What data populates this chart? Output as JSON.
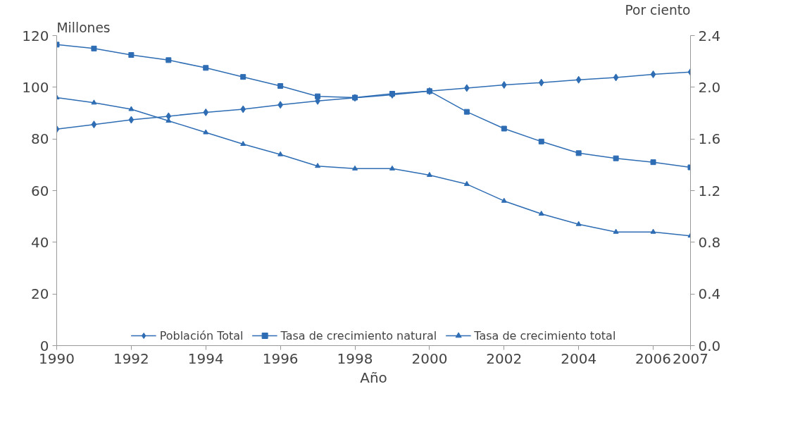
{
  "chart_data": {
    "type": "line",
    "xlabel": "Año",
    "ylabel": "Millones",
    "y2label": "Por ciento",
    "x": [
      1990,
      1991,
      1992,
      1993,
      1994,
      1995,
      1996,
      1997,
      1998,
      1999,
      2000,
      2001,
      2002,
      2003,
      2004,
      2005,
      2006,
      2007
    ],
    "xlim": [
      1990,
      2007
    ],
    "xticks": [
      1990,
      1992,
      1994,
      1996,
      1998,
      2000,
      2002,
      2004,
      2006,
      2007
    ],
    "ylim": [
      0,
      120
    ],
    "yticks": [
      0,
      20,
      40,
      60,
      80,
      100,
      120
    ],
    "y2lim": [
      0,
      2.4
    ],
    "y2ticks": [
      {
        "value": 0,
        "label": "0.0"
      },
      0.4,
      0.8,
      1.2,
      1.6,
      {
        "value": 2,
        "label": "2.0"
      },
      2.4
    ],
    "grid": false,
    "legend": "bottom",
    "series": [
      {
        "name": "Población Total",
        "color": "#2e6db4",
        "marker": "diamond",
        "values": [
          83.8,
          85.6,
          87.4,
          88.8,
          90.3,
          91.5,
          93.2,
          94.7,
          95.9,
          97.1,
          98.5,
          99.7,
          100.9,
          101.8,
          102.9,
          103.8,
          105,
          105.9
        ]
      },
      {
        "name": "Tasa de crecimiento natural",
        "color": "#2e6db4",
        "marker": "square",
        "axis": "y2",
        "values": [
          2.33,
          2.3,
          2.25,
          2.21,
          2.15,
          2.08,
          2.01,
          1.93,
          1.92,
          1.95,
          1.97,
          1.81,
          1.68,
          1.58,
          1.49,
          1.45,
          1.42,
          1.38
        ]
      },
      {
        "name": "Tasa de crecimiento total",
        "color": "#2e6db4",
        "marker": "triangle",
        "axis": "y2",
        "values": [
          1.92,
          1.88,
          1.83,
          1.74,
          1.65,
          1.56,
          1.48,
          1.39,
          1.37,
          1.37,
          1.32,
          1.25,
          1.12,
          1.02,
          0.94,
          0.88,
          0.88,
          0.85
        ]
      }
    ]
  }
}
